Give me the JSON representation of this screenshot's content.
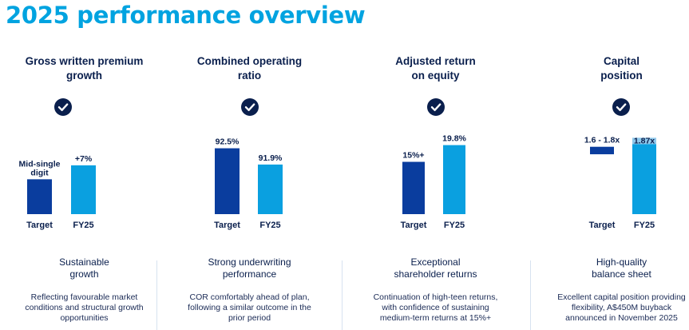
{
  "title": "2025 performance overview",
  "colors": {
    "title": "#00a3e0",
    "navy": "#0a1f4d",
    "target_bar": "#0a3d9e",
    "fy25_bar": "#0aa0e0",
    "fy25_cap": "#8fc9ec",
    "divider": "#d7e2f0"
  },
  "panels": [
    {
      "title": "Gross written premium\ngrowth",
      "icon": "check-circle-icon",
      "subtitle": "Sustainable\ngrowth",
      "description": "Reflecting favourable market\nconditions and structural growth\nopportunities"
    },
    {
      "title": "Combined operating\nratio",
      "icon": "check-circle-icon",
      "subtitle": "Strong underwriting\nperformance",
      "description": "COR comfortably ahead of plan,\nfollowing a similar outcome in the\nprior period"
    },
    {
      "title": "Adjusted return\non equity",
      "icon": "check-circle-icon",
      "subtitle": "Exceptional\nshareholder returns",
      "description": "Continuation of high-teen returns,\nwith confidence of sustaining\nmedium-term returns at 15%+"
    },
    {
      "title": "Capital\nposition",
      "icon": "check-circle-icon",
      "subtitle": "High-quality\nbalance sheet",
      "description": "Excellent capital position providing\nflexibility, A$450M buyback\nannounced in November 2025"
    }
  ],
  "chart_data": [
    {
      "type": "bar",
      "title": "Gross written premium growth",
      "categories": [
        "Target",
        "FY25"
      ],
      "values": [
        5,
        7
      ],
      "data_labels": [
        "Mid-single\ndigit",
        "+7%"
      ],
      "ylim": [
        0,
        11
      ]
    },
    {
      "type": "bar",
      "title": "Combined operating ratio",
      "categories": [
        "Target",
        "FY25"
      ],
      "values": [
        92.5,
        91.9
      ],
      "data_labels": [
        "92.5%",
        "91.9%"
      ],
      "ylim": [
        90.07,
        92.9
      ]
    },
    {
      "type": "bar",
      "title": "Adjusted return on equity",
      "categories": [
        "Target",
        "FY25"
      ],
      "values": [
        15,
        19.8
      ],
      "data_labels": [
        "15%+",
        "19.8%"
      ],
      "ylim": [
        0,
        22
      ]
    },
    {
      "type": "bar",
      "title": "Capital position",
      "categories": [
        "Target",
        "FY25"
      ],
      "ranges": [
        [
          1.6,
          1.8
        ],
        [
          0,
          1.87
        ]
      ],
      "data_labels": [
        "1.6 - 1.8x",
        "1.87x"
      ],
      "ylim": [
        0,
        2.05
      ]
    }
  ]
}
